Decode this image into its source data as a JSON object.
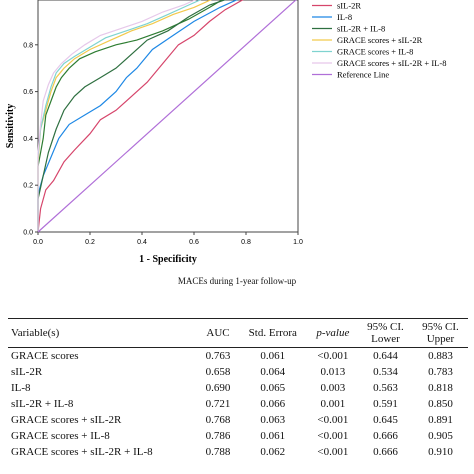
{
  "chart_data": {
    "type": "line",
    "xlabel": "1 - Specificity",
    "ylabel": "Sensitivity",
    "caption": "MACEs during 1-year follow-up",
    "xlim": [
      0,
      1
    ],
    "ylim": [
      0,
      1
    ],
    "x_ticks": [
      "0.0",
      "0.2",
      "0.4",
      "0.6",
      "0.8",
      "1.0"
    ],
    "y_ticks": [
      "0.0",
      "0.2",
      "0.4",
      "0.6",
      "0.8"
    ],
    "legend_position": "top-right",
    "series": [
      {
        "name": "GRACE scores",
        "color": "#2e7d32",
        "points": [
          [
            0,
            0
          ],
          [
            0,
            0.28
          ],
          [
            0.02,
            0.4
          ],
          [
            0.03,
            0.5
          ],
          [
            0.05,
            0.56
          ],
          [
            0.07,
            0.62
          ],
          [
            0.09,
            0.66
          ],
          [
            0.12,
            0.7
          ],
          [
            0.16,
            0.74
          ],
          [
            0.22,
            0.77
          ],
          [
            0.3,
            0.8
          ],
          [
            0.38,
            0.82
          ],
          [
            0.48,
            0.86
          ],
          [
            0.58,
            0.91
          ],
          [
            0.66,
            0.96
          ],
          [
            0.72,
            1.0
          ],
          [
            1,
            1
          ]
        ]
      },
      {
        "name": "sIL-2R",
        "color": "#d6456b",
        "points": [
          [
            0,
            0
          ],
          [
            0.01,
            0.1
          ],
          [
            0.03,
            0.18
          ],
          [
            0.06,
            0.22
          ],
          [
            0.1,
            0.3
          ],
          [
            0.14,
            0.35
          ],
          [
            0.2,
            0.42
          ],
          [
            0.24,
            0.48
          ],
          [
            0.3,
            0.52
          ],
          [
            0.36,
            0.58
          ],
          [
            0.42,
            0.64
          ],
          [
            0.48,
            0.72
          ],
          [
            0.54,
            0.8
          ],
          [
            0.6,
            0.84
          ],
          [
            0.66,
            0.9
          ],
          [
            0.72,
            0.95
          ],
          [
            0.8,
            1.0
          ],
          [
            1,
            1
          ]
        ]
      },
      {
        "name": "IL-8",
        "color": "#1e88e5",
        "points": [
          [
            0,
            0
          ],
          [
            0,
            0.16
          ],
          [
            0.02,
            0.24
          ],
          [
            0.05,
            0.32
          ],
          [
            0.08,
            0.4
          ],
          [
            0.12,
            0.46
          ],
          [
            0.18,
            0.5
          ],
          [
            0.24,
            0.54
          ],
          [
            0.3,
            0.6
          ],
          [
            0.34,
            0.66
          ],
          [
            0.38,
            0.7
          ],
          [
            0.44,
            0.78
          ],
          [
            0.52,
            0.84
          ],
          [
            0.6,
            0.9
          ],
          [
            0.7,
            0.96
          ],
          [
            0.78,
            1.0
          ],
          [
            1,
            1
          ]
        ]
      },
      {
        "name": "sIL-2R + IL-8",
        "color": "#2e6f40",
        "points": [
          [
            0,
            0
          ],
          [
            0,
            0.14
          ],
          [
            0.02,
            0.24
          ],
          [
            0.04,
            0.34
          ],
          [
            0.07,
            0.44
          ],
          [
            0.1,
            0.52
          ],
          [
            0.14,
            0.58
          ],
          [
            0.18,
            0.62
          ],
          [
            0.24,
            0.66
          ],
          [
            0.3,
            0.7
          ],
          [
            0.36,
            0.76
          ],
          [
            0.42,
            0.82
          ],
          [
            0.5,
            0.86
          ],
          [
            0.58,
            0.92
          ],
          [
            0.66,
            0.97
          ],
          [
            0.74,
            1.0
          ],
          [
            1,
            1
          ]
        ]
      },
      {
        "name": "GRACE scores + sIL-2R",
        "color": "#f2c94c",
        "points": [
          [
            0,
            0
          ],
          [
            0,
            0.3
          ],
          [
            0.01,
            0.44
          ],
          [
            0.03,
            0.52
          ],
          [
            0.05,
            0.6
          ],
          [
            0.07,
            0.66
          ],
          [
            0.1,
            0.7
          ],
          [
            0.14,
            0.74
          ],
          [
            0.2,
            0.78
          ],
          [
            0.28,
            0.82
          ],
          [
            0.36,
            0.86
          ],
          [
            0.44,
            0.89
          ],
          [
            0.52,
            0.93
          ],
          [
            0.6,
            0.96
          ],
          [
            0.68,
            1.0
          ],
          [
            1,
            1
          ]
        ]
      },
      {
        "name": "GRACE scores + IL-8",
        "color": "#7fd3d0",
        "points": [
          [
            0,
            0
          ],
          [
            0,
            0.32
          ],
          [
            0.01,
            0.44
          ],
          [
            0.03,
            0.54
          ],
          [
            0.05,
            0.62
          ],
          [
            0.07,
            0.68
          ],
          [
            0.1,
            0.72
          ],
          [
            0.14,
            0.75
          ],
          [
            0.2,
            0.79
          ],
          [
            0.26,
            0.83
          ],
          [
            0.34,
            0.86
          ],
          [
            0.42,
            0.89
          ],
          [
            0.5,
            0.93
          ],
          [
            0.58,
            0.97
          ],
          [
            0.64,
            1.0
          ],
          [
            1,
            1
          ]
        ]
      },
      {
        "name": "GRACE scores + sIL-2R + IL-8",
        "color": "#e6c8ea",
        "points": [
          [
            0,
            0
          ],
          [
            0,
            0.34
          ],
          [
            0.01,
            0.46
          ],
          [
            0.02,
            0.56
          ],
          [
            0.04,
            0.63
          ],
          [
            0.06,
            0.68
          ],
          [
            0.09,
            0.72
          ],
          [
            0.13,
            0.76
          ],
          [
            0.18,
            0.8
          ],
          [
            0.24,
            0.84
          ],
          [
            0.32,
            0.87
          ],
          [
            0.4,
            0.9
          ],
          [
            0.48,
            0.94
          ],
          [
            0.56,
            0.97
          ],
          [
            0.62,
            1.0
          ],
          [
            1,
            1
          ]
        ]
      },
      {
        "name": "Reference Line",
        "color": "#b06fd8",
        "points": [
          [
            0,
            0
          ],
          [
            1,
            1
          ]
        ]
      }
    ]
  },
  "table": {
    "headers": [
      "Variable(s)",
      "AUC",
      "Std. Errora",
      "p-value",
      "95% CI. Lower",
      "95% CI. Upper"
    ],
    "ci_label": "95% CI.",
    "lower_label": "Lower",
    "upper_label": "Upper",
    "rows": [
      [
        "GRACE scores",
        "0.763",
        "0.061",
        "<0.001",
        "0.644",
        "0.883"
      ],
      [
        "sIL-2R",
        "0.658",
        "0.064",
        "0.013",
        "0.534",
        "0.783"
      ],
      [
        "IL-8",
        "0.690",
        "0.065",
        "0.003",
        "0.563",
        "0.818"
      ],
      [
        "sIL-2R + IL-8",
        "0.721",
        "0.066",
        "0.001",
        "0.591",
        "0.850"
      ],
      [
        "GRACE scores + sIL-2R",
        "0.768",
        "0.063",
        "<0.001",
        "0.645",
        "0.891"
      ],
      [
        "GRACE scores + IL-8",
        "0.786",
        "0.061",
        "<0.001",
        "0.666",
        "0.905"
      ],
      [
        "GRACE scores + sIL-2R + IL-8",
        "0.788",
        "0.062",
        "<0.001",
        "0.666",
        "0.910"
      ]
    ]
  }
}
